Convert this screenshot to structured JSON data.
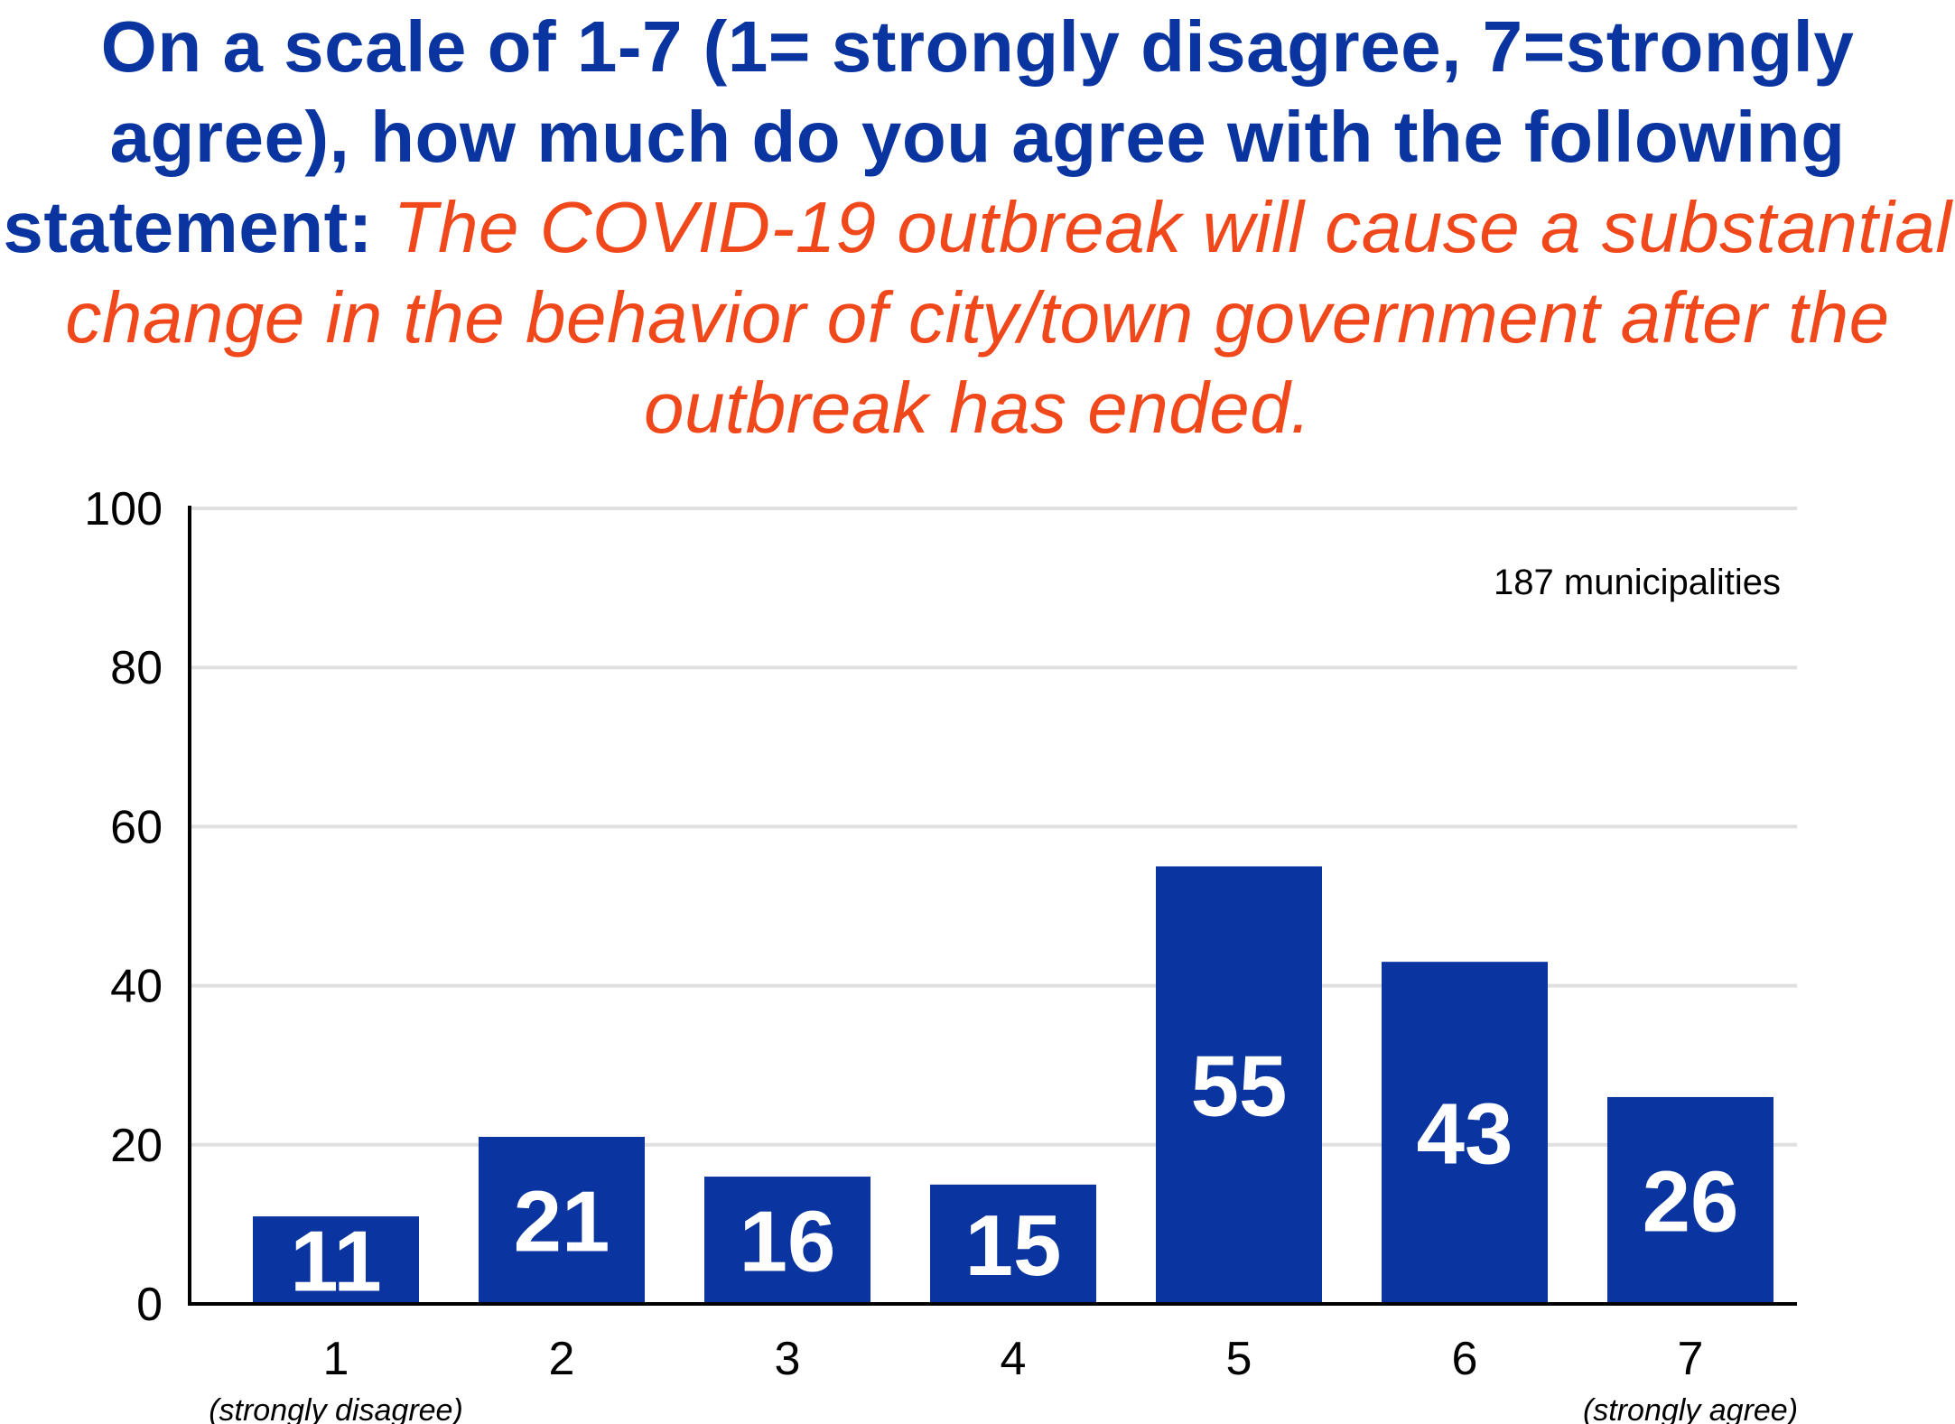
{
  "chart_data": {
    "type": "bar",
    "title": "On a scale of 1-7 (1= strongly disagree, 7=strongly agree), how much do you agree with the following statement:",
    "statement": "The COVID-19 outbreak will cause a substantial change in the behavior of city/town government after the outbreak has ended.",
    "categories": [
      "1",
      "2",
      "3",
      "4",
      "5",
      "6",
      "7"
    ],
    "category_sublabels": [
      "(strongly disagree)",
      "",
      "",
      "",
      "",
      "",
      "(strongly agree)"
    ],
    "values": [
      11,
      21,
      16,
      15,
      55,
      43,
      26
    ],
    "data_labels": [
      "11",
      "21",
      "16",
      "15",
      "55",
      "43",
      "26"
    ],
    "y_ticks": [
      "0",
      "20",
      "40",
      "60",
      "80",
      "100"
    ],
    "ylim": [
      0,
      100
    ],
    "xlabel": "",
    "ylabel": "",
    "grid": true,
    "annotation": "187 municipalities",
    "bar_color": "#0a35a0",
    "grid_color": "#e0e0e0"
  }
}
